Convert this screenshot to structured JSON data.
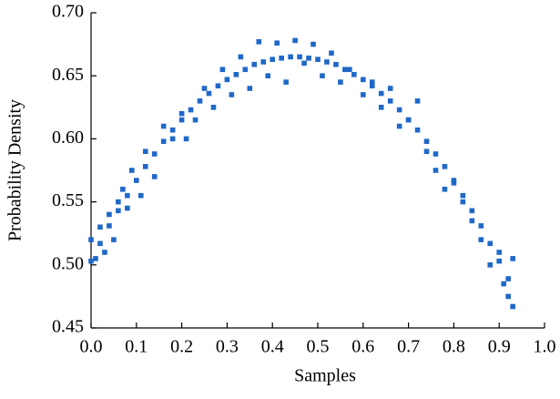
{
  "chart_data": {
    "type": "scatter",
    "x_label": "Samples",
    "y_label": "Probability Density",
    "xlim": [
      0,
      1
    ],
    "ylim": [
      0.45,
      0.7
    ],
    "xticks": [
      {
        "value": 0,
        "label": "0.0"
      },
      0.1,
      0.2,
      0.3,
      0.4,
      0.5,
      0.6,
      0.7,
      0.8,
      0.9,
      {
        "value": 1,
        "label": "1.0"
      }
    ],
    "yticks": [
      0.45,
      {
        "value": 0.5,
        "label": "0.50"
      },
      0.55,
      {
        "value": 0.6,
        "label": "0.60"
      },
      0.65,
      {
        "value": 0.7,
        "label": "0.70"
      }
    ],
    "series": [
      {
        "color": "#1f68c8",
        "x": [
          0,
          0.02,
          0.04,
          0.06,
          0.08,
          0.1,
          0.12,
          0.14,
          0.16,
          0.18,
          0.2,
          0.22,
          0.24,
          0.26,
          0.28,
          0.3,
          0.32,
          0.34,
          0.36,
          0.38,
          0.4,
          0.42,
          0.44,
          0.46,
          0.48,
          0.5,
          0.52,
          0.54,
          0.56,
          0.58,
          0.6,
          0.62,
          0.64,
          0.66,
          0.68,
          0.7,
          0.72,
          0.74,
          0.76,
          0.78,
          0.8,
          0.82,
          0.84,
          0.86,
          0.88,
          0.9,
          0.92
        ],
        "values": [
          0.503,
          0.517,
          0.531,
          0.543,
          0.555,
          0.567,
          0.578,
          0.588,
          0.598,
          0.607,
          0.615,
          0.623,
          0.63,
          0.636,
          0.642,
          0.647,
          0.651,
          0.655,
          0.659,
          0.661,
          0.663,
          0.664,
          0.665,
          0.665,
          0.664,
          0.663,
          0.661,
          0.659,
          0.655,
          0.651,
          0.647,
          0.642,
          0.636,
          0.63,
          0.623,
          0.615,
          0.607,
          0.598,
          0.588,
          0.578,
          0.567,
          0.555,
          0.543,
          0.531,
          0.517,
          0.503,
          0.489
        ]
      },
      {
        "color": "#1f68c8",
        "x": [
          0,
          0.01,
          0.02,
          0.03,
          0.04,
          0.05,
          0.06,
          0.07,
          0.08,
          0.09,
          0.11,
          0.12,
          0.14,
          0.16,
          0.18,
          0.2,
          0.21,
          0.23,
          0.25,
          0.27,
          0.29,
          0.31,
          0.33,
          0.35,
          0.37,
          0.39,
          0.41,
          0.43,
          0.45,
          0.47,
          0.49,
          0.51,
          0.53,
          0.55,
          0.57,
          0.6,
          0.62,
          0.64,
          0.66,
          0.68,
          0.7,
          0.72,
          0.74,
          0.76,
          0.78,
          0.8,
          0.82,
          0.84,
          0.86,
          0.88,
          0.9,
          0.91,
          0.92,
          0.93,
          0.93
        ],
        "values": [
          0.52,
          0.505,
          0.53,
          0.51,
          0.54,
          0.52,
          0.55,
          0.56,
          0.545,
          0.575,
          0.555,
          0.59,
          0.57,
          0.61,
          0.6,
          0.62,
          0.6,
          0.615,
          0.64,
          0.625,
          0.655,
          0.635,
          0.665,
          0.64,
          0.677,
          0.65,
          0.676,
          0.645,
          0.678,
          0.66,
          0.675,
          0.65,
          0.668,
          0.645,
          0.655,
          0.635,
          0.645,
          0.625,
          0.64,
          0.61,
          0.615,
          0.63,
          0.59,
          0.575,
          0.56,
          0.565,
          0.55,
          0.535,
          0.52,
          0.5,
          0.51,
          0.485,
          0.475,
          0.467,
          0.505
        ]
      }
    ]
  }
}
